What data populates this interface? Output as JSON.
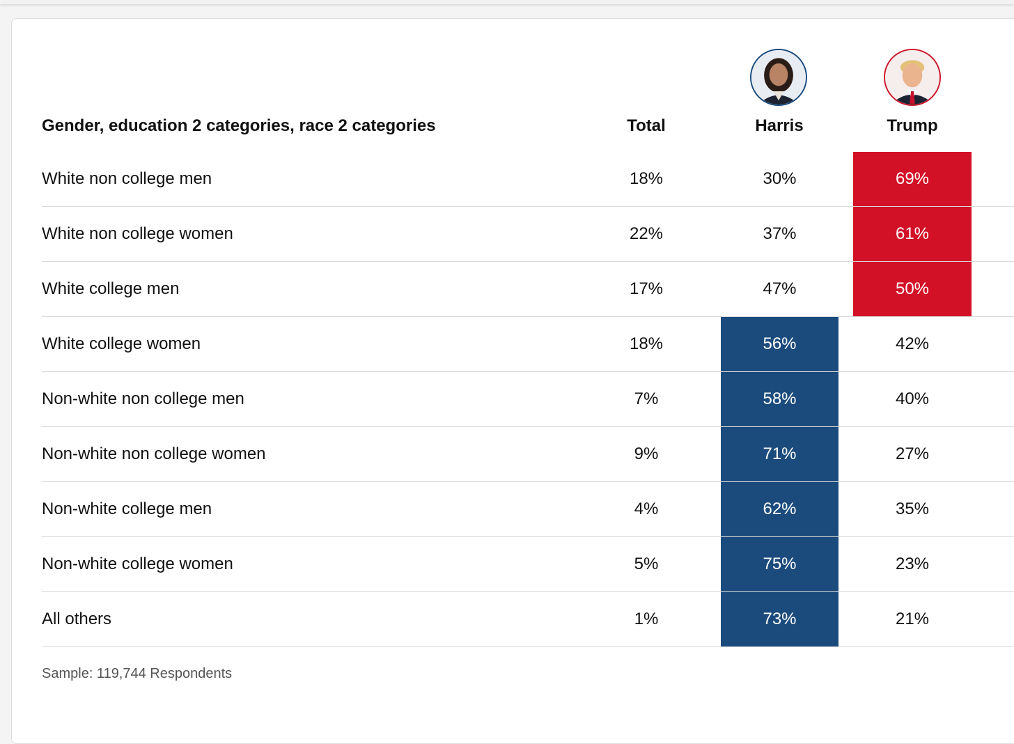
{
  "header": {
    "category_title": "Gender, education 2 categories, race 2 categories",
    "total_label": "Total",
    "harris_label": "Harris",
    "trump_label": "Trump"
  },
  "avatars": {
    "harris_icon": "harris-portrait-icon",
    "trump_icon": "trump-portrait-icon"
  },
  "colors": {
    "harris_blue": "#1b4b7d",
    "trump_red": "#d21126",
    "divider": "#d9d9d9"
  },
  "rows": [
    {
      "label": "White non college men",
      "total": "18%",
      "harris": "30%",
      "trump": "69%",
      "winner": "trump"
    },
    {
      "label": "White non college women",
      "total": "22%",
      "harris": "37%",
      "trump": "61%",
      "winner": "trump"
    },
    {
      "label": "White college men",
      "total": "17%",
      "harris": "47%",
      "trump": "50%",
      "winner": "trump"
    },
    {
      "label": "White college women",
      "total": "18%",
      "harris": "56%",
      "trump": "42%",
      "winner": "harris"
    },
    {
      "label": "Non-white non college men",
      "total": "7%",
      "harris": "58%",
      "trump": "40%",
      "winner": "harris"
    },
    {
      "label": "Non-white non college women",
      "total": "9%",
      "harris": "71%",
      "trump": "27%",
      "winner": "harris"
    },
    {
      "label": "Non-white college men",
      "total": "4%",
      "harris": "62%",
      "trump": "35%",
      "winner": "harris"
    },
    {
      "label": "Non-white college women",
      "total": "5%",
      "harris": "75%",
      "trump": "23%",
      "winner": "harris"
    },
    {
      "label": "All others",
      "total": "1%",
      "harris": "73%",
      "trump": "21%",
      "winner": "harris"
    }
  ],
  "footnote": "Sample: 119,744 Respondents",
  "chart_data": {
    "type": "table",
    "title": "",
    "columns": [
      "Gender, education 2 categories, race 2 categories",
      "Total",
      "Harris",
      "Trump"
    ],
    "categories": [
      "White non college men",
      "White non college women",
      "White college men",
      "White college women",
      "Non-white non college men",
      "Non-white non college women",
      "Non-white college men",
      "Non-white college women",
      "All others"
    ],
    "series": [
      {
        "name": "Total",
        "values": [
          18,
          22,
          17,
          18,
          7,
          9,
          4,
          5,
          1
        ]
      },
      {
        "name": "Harris",
        "values": [
          30,
          37,
          47,
          56,
          58,
          71,
          62,
          75,
          73
        ]
      },
      {
        "name": "Trump",
        "values": [
          69,
          61,
          50,
          42,
          40,
          27,
          35,
          23,
          21
        ]
      }
    ],
    "unit": "%",
    "note": "Sample: 119,744 Respondents"
  }
}
